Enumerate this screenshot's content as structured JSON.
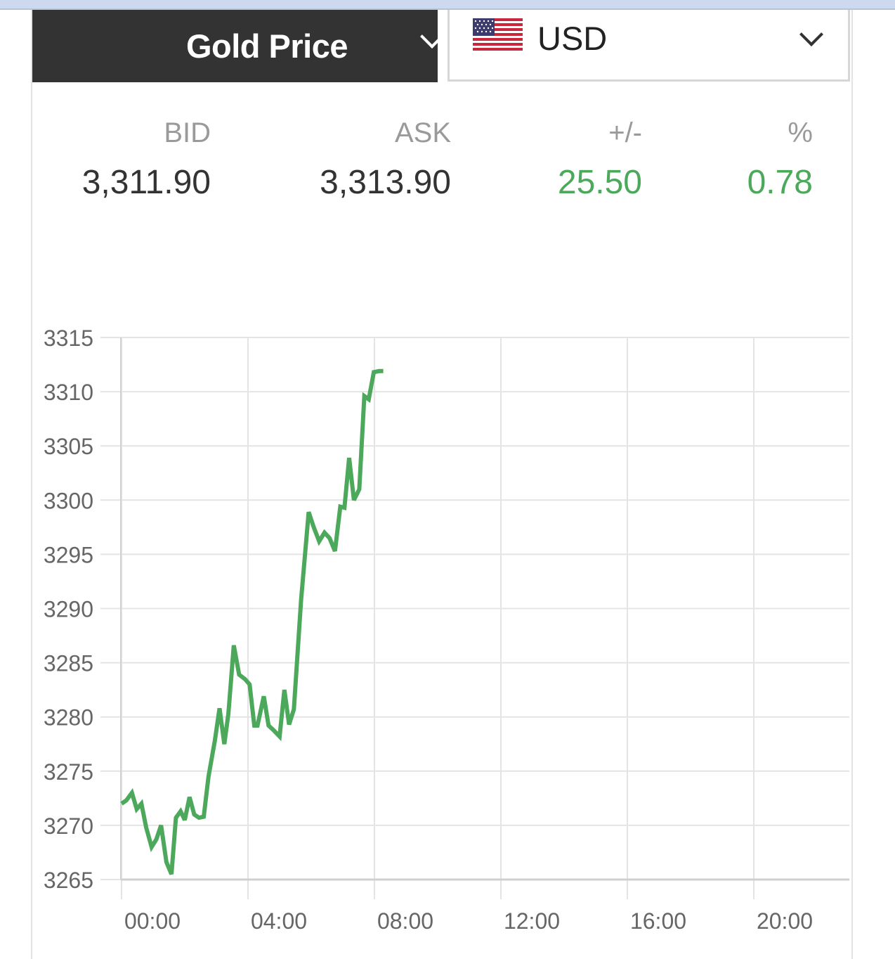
{
  "header": {
    "metal_select": {
      "label": "Gold Price",
      "icon": "chevron-down-icon"
    },
    "currency_select": {
      "label": "USD",
      "flag": "us-flag-icon",
      "icon": "chevron-down-icon"
    }
  },
  "quote": {
    "columns": [
      {
        "key": "bid",
        "label": "BID",
        "value": "3,311.90",
        "color": "#333333"
      },
      {
        "key": "ask",
        "label": "ASK",
        "value": "3,313.90",
        "color": "#333333"
      },
      {
        "key": "change",
        "label": "+/-",
        "value": "25.50",
        "color": "#4ca85a"
      },
      {
        "key": "percent",
        "label": "%",
        "value": "0.78",
        "color": "#4ca85a"
      }
    ]
  },
  "colors": {
    "line": "#4ca85a",
    "grid": "#e4e4e4",
    "axis_text": "#666666",
    "header_bg": "#333333"
  },
  "chart_data": {
    "type": "line",
    "title": "",
    "xlabel": "",
    "ylabel": "",
    "x_ticks": [
      "00:00",
      "04:00",
      "08:00",
      "12:00",
      "16:00",
      "20:00"
    ],
    "x_range_hours": [
      0,
      23.3
    ],
    "ylim": [
      3265,
      3315
    ],
    "y_ticks": [
      3315,
      3310,
      3305,
      3300,
      3295,
      3290,
      3285,
      3280,
      3275,
      3270,
      3265
    ],
    "grid": true,
    "legend": "none",
    "series": [
      {
        "x": [
          0.0,
          0.15,
          0.33,
          0.48,
          0.63,
          0.78,
          0.95,
          1.1,
          1.25,
          1.42,
          1.58,
          1.72,
          1.87,
          2.0,
          2.15,
          2.3,
          2.45,
          2.6,
          2.75,
          2.95,
          3.1,
          3.25,
          3.38,
          3.55,
          3.72,
          3.9,
          4.05,
          4.2,
          4.3,
          4.5,
          4.65,
          4.8,
          5.0,
          5.15,
          5.3,
          5.45,
          5.68,
          5.92,
          6.08,
          6.25,
          6.42,
          6.58,
          6.75,
          6.92,
          7.05,
          7.2,
          7.35,
          7.52,
          7.68,
          7.82,
          7.98,
          8.15,
          8.28
        ],
        "y": [
          3272,
          3272.3,
          3273,
          3271.5,
          3272,
          3269.8,
          3268,
          3268.7,
          3270,
          3266.6,
          3265.5,
          3270.7,
          3271.3,
          3270.5,
          3272.6,
          3271,
          3270.7,
          3270.8,
          3274.5,
          3277.8,
          3280.8,
          3277.5,
          3280.3,
          3286.6,
          3283.9,
          3283.5,
          3283,
          3279.2,
          3279.2,
          3281.9,
          3279.2,
          3278.8,
          3278.2,
          3282.5,
          3279.3,
          3280.7,
          3290.8,
          3298.9,
          3297.5,
          3296.2,
          3297,
          3296.5,
          3295.3,
          3299.4,
          3299.3,
          3303.9,
          3300,
          3301,
          3309.6,
          3309.3,
          3311.8,
          3311.9,
          3311.9
        ]
      }
    ]
  }
}
